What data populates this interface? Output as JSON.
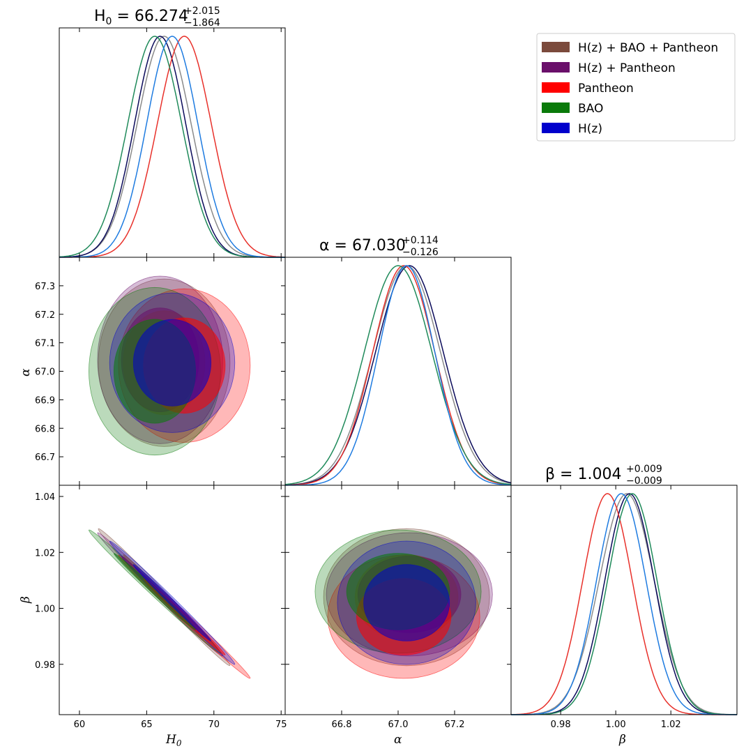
{
  "chart_data": {
    "type": "corner",
    "parameters": [
      {
        "key": "H0",
        "axis_label": "H",
        "axis_sub": "0",
        "range": [
          58.5,
          75.3
        ],
        "ticks": [
          60,
          65,
          70,
          75
        ],
        "title_sym": "H",
        "title_sub": "0",
        "title_value": "66.274",
        "err_plus": "+2.015",
        "err_minus": "−1.864"
      },
      {
        "key": "alpha",
        "axis_label": "α",
        "axis_sub": "",
        "range": [
          66.6,
          67.4
        ],
        "ticks": [
          66.8,
          67.0,
          67.2
        ],
        "yticks": [
          66.7,
          66.8,
          66.9,
          67.0,
          67.1,
          67.2,
          67.3
        ],
        "title_sym": "α",
        "title_sub": "",
        "title_value": "67.030",
        "err_plus": "+0.114",
        "err_minus": "−0.126"
      },
      {
        "key": "beta",
        "axis_label": "β",
        "axis_sub": "",
        "range": [
          0.962,
          1.044
        ],
        "ticks": [
          0.98,
          1.0,
          1.02
        ],
        "title_sym": "β",
        "title_sub": "",
        "title_value": "1.004",
        "err_plus": "+0.009",
        "err_minus": "−0.009"
      }
    ],
    "series": [
      {
        "name": "H(z) + BAO + Pantheon",
        "color": "#7b4a3c",
        "line": "#8a8a8a",
        "means": {
          "H0": 66.3,
          "alpha": 67.03,
          "beta": 1.004
        },
        "sigmas": {
          "H0": 2.0,
          "alpha": 0.12,
          "beta": 0.01
        }
      },
      {
        "name": "H(z) + Pantheon",
        "color": "#6a0f6a",
        "line": "#0a0a5a",
        "means": {
          "H0": 66.0,
          "alpha": 67.04,
          "beta": 1.005
        },
        "sigmas": {
          "H0": 1.9,
          "alpha": 0.12,
          "beta": 0.009
        }
      },
      {
        "name": "Pantheon",
        "color": "#ff0000",
        "line": "#e8302a",
        "means": {
          "H0": 67.8,
          "alpha": 67.02,
          "beta": 0.997
        },
        "sigmas": {
          "H0": 2.0,
          "alpha": 0.11,
          "beta": 0.009
        }
      },
      {
        "name": "BAO",
        "color": "#0a7a0a",
        "line": "#1f8a5a",
        "means": {
          "H0": 65.6,
          "alpha": 67.0,
          "beta": 1.006
        },
        "sigmas": {
          "H0": 2.0,
          "alpha": 0.12,
          "beta": 0.009
        }
      },
      {
        "name": "H(z)",
        "color": "#0000cc",
        "line": "#1e7be0",
        "means": {
          "H0": 66.9,
          "alpha": 67.03,
          "beta": 1.002
        },
        "sigmas": {
          "H0": 1.9,
          "alpha": 0.1,
          "beta": 0.009
        }
      }
    ],
    "title_format": "{sym} = {value}"
  }
}
